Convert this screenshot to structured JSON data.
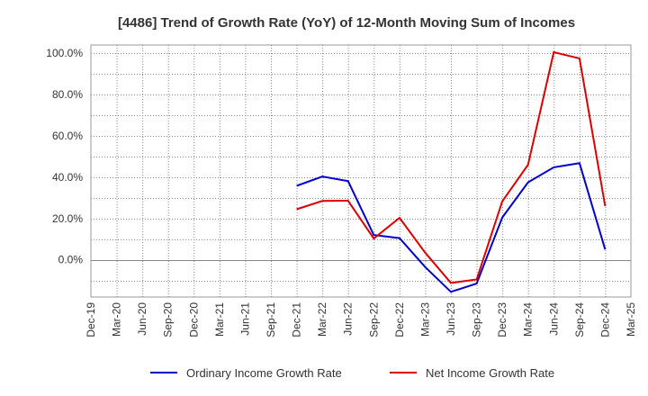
{
  "chart_data": {
    "type": "line",
    "title": "[4486]  Trend of Growth Rate (YoY) of 12-Month Moving Sum of Incomes",
    "x": [
      "Dec-19",
      "Mar-20",
      "Jun-20",
      "Sep-20",
      "Dec-20",
      "Mar-21",
      "Jun-21",
      "Sep-21",
      "Dec-21",
      "Mar-22",
      "Jun-22",
      "Sep-22",
      "Dec-22",
      "Mar-23",
      "Jun-23",
      "Sep-23",
      "Dec-23",
      "Mar-24",
      "Jun-24",
      "Sep-24",
      "Dec-24",
      "Mar-25"
    ],
    "yticks": [
      "0.0%",
      "20.0%",
      "40.0%",
      "60.0%",
      "80.0%",
      "100.0%"
    ],
    "ylim": [
      -18,
      104
    ],
    "grid": true,
    "legend_position": "bottom",
    "series": [
      {
        "name": "Ordinary Income Growth Rate",
        "color": "#0000cc",
        "values": [
          null,
          null,
          null,
          null,
          null,
          null,
          null,
          null,
          35.8,
          40.3,
          38.1,
          12.0,
          10.5,
          -3.5,
          -15.5,
          -11.5,
          20.5,
          37.5,
          44.8,
          46.8,
          5.0,
          null
        ]
      },
      {
        "name": "Net Income Growth Rate",
        "color": "#dd0000",
        "values": [
          null,
          null,
          null,
          null,
          null,
          null,
          null,
          null,
          24.5,
          28.5,
          28.6,
          10.3,
          20.3,
          3.5,
          -11.2,
          -9.5,
          28.3,
          46.0,
          100.5,
          97.5,
          26.0,
          null
        ]
      }
    ]
  }
}
